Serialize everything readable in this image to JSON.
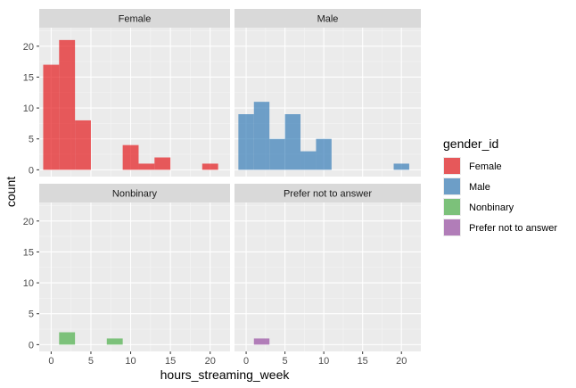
{
  "chart_data": {
    "type": "bar",
    "subtype": "faceted-histogram",
    "xlabel": "hours_streaming_week",
    "ylabel": "count",
    "xlim": [
      -1.5,
      22.5
    ],
    "ylim": [
      -1.1,
      23
    ],
    "x_ticks": [
      0,
      5,
      10,
      15,
      20
    ],
    "x_minor_ticks": [
      2.5,
      7.5,
      12.5,
      17.5
    ],
    "y_ticks": [
      0,
      5,
      10,
      15,
      20
    ],
    "y_minor_ticks": [
      2.5,
      7.5,
      12.5,
      17.5,
      22.5
    ],
    "bin_width": 2.0,
    "grid": true,
    "legend": {
      "title": "gender_id",
      "position": "right",
      "entries": [
        "Female",
        "Male",
        "Nonbinary",
        "Prefer not to answer"
      ]
    },
    "colors": {
      "Female": "#e41a1c",
      "Male": "#377eb8",
      "Nonbinary": "#4daf4a",
      "Prefer not to answer": "#984ea3",
      "panel_background": "#ebebeb",
      "grid_major": "#ffffff",
      "strip_background": "#d9d9d9"
    },
    "bar_opacity": 0.7,
    "facets": [
      {
        "label": "Female",
        "group": "Female",
        "bins": [
          {
            "x": 0,
            "count": 17
          },
          {
            "x": 2,
            "count": 21
          },
          {
            "x": 4,
            "count": 8
          },
          {
            "x": 6,
            "count": 0
          },
          {
            "x": 8,
            "count": 0
          },
          {
            "x": 10,
            "count": 4
          },
          {
            "x": 12,
            "count": 1
          },
          {
            "x": 14,
            "count": 2
          },
          {
            "x": 16,
            "count": 0
          },
          {
            "x": 18,
            "count": 0
          },
          {
            "x": 20,
            "count": 1
          }
        ]
      },
      {
        "label": "Male",
        "group": "Male",
        "bins": [
          {
            "x": 0,
            "count": 9
          },
          {
            "x": 2,
            "count": 11
          },
          {
            "x": 4,
            "count": 5
          },
          {
            "x": 6,
            "count": 9
          },
          {
            "x": 8,
            "count": 3
          },
          {
            "x": 10,
            "count": 5
          },
          {
            "x": 12,
            "count": 0
          },
          {
            "x": 14,
            "count": 0
          },
          {
            "x": 16,
            "count": 0
          },
          {
            "x": 18,
            "count": 0
          },
          {
            "x": 20,
            "count": 1
          }
        ]
      },
      {
        "label": "Nonbinary",
        "group": "Nonbinary",
        "bins": [
          {
            "x": 2,
            "count": 2
          },
          {
            "x": 8,
            "count": 1
          }
        ]
      },
      {
        "label": "Prefer not to answer",
        "group": "Prefer not to answer",
        "bins": [
          {
            "x": 2,
            "count": 1
          }
        ]
      }
    ]
  }
}
